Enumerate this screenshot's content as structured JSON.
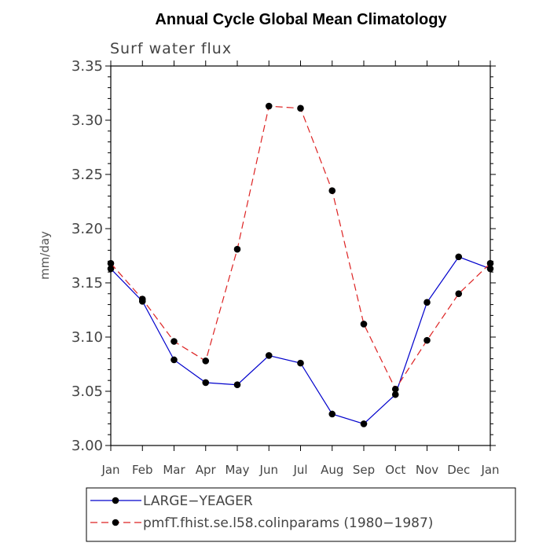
{
  "chart_data": {
    "type": "line",
    "title": "Annual Cycle Global Mean Climatology",
    "subtitle": "Surf water flux",
    "xlabel": "",
    "ylabel": "mm/day",
    "categories": [
      "Jan",
      "Feb",
      "Mar",
      "Apr",
      "May",
      "Jun",
      "Jul",
      "Aug",
      "Sep",
      "Oct",
      "Nov",
      "Dec",
      "Jan"
    ],
    "yticks": [
      "3.00",
      "3.05",
      "3.10",
      "3.15",
      "3.20",
      "3.25",
      "3.30",
      "3.35"
    ],
    "ylim": [
      3.0,
      3.35
    ],
    "grid": false,
    "legend_position": "bottom",
    "series": [
      {
        "name": "LARGE−YEAGER",
        "color": "#0000cc",
        "dash": "solid",
        "values": [
          3.163,
          3.133,
          3.079,
          3.058,
          3.056,
          3.083,
          3.076,
          3.029,
          3.02,
          3.047,
          3.132,
          3.174,
          3.163
        ]
      },
      {
        "name": "pmfT.fhist.se.l58.colinparams (1980−1987)",
        "color": "#dd2222",
        "dash": "dashed",
        "values": [
          3.168,
          3.135,
          3.096,
          3.078,
          3.181,
          3.313,
          3.311,
          3.235,
          3.112,
          3.052,
          3.097,
          3.14,
          3.168
        ]
      }
    ]
  }
}
